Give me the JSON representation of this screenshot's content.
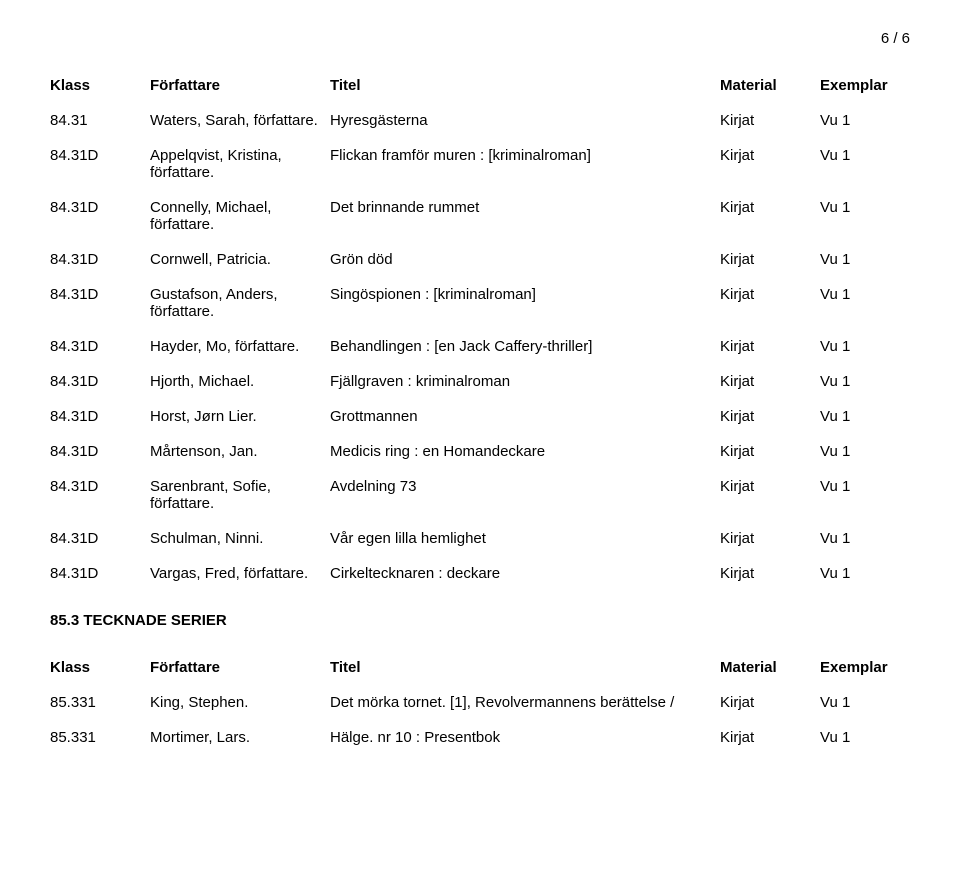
{
  "page_number": "6 / 6",
  "headers": {
    "klass": "Klass",
    "author": "Författare",
    "title": "Titel",
    "material": "Material",
    "exemplar": "Exemplar"
  },
  "rows1": [
    {
      "klass": "84.31",
      "author": "Waters, Sarah, författare.",
      "title": "Hyresgästerna",
      "material": "Kirjat",
      "ex": "Vu 1"
    },
    {
      "klass": "84.31D",
      "author": "Appelqvist, Kristina, författare.",
      "title": "Flickan framför muren : [kriminalroman]",
      "material": "Kirjat",
      "ex": "Vu 1"
    },
    {
      "klass": "84.31D",
      "author": "Connelly, Michael, författare.",
      "title": "Det brinnande rummet",
      "material": "Kirjat",
      "ex": "Vu 1"
    },
    {
      "klass": "84.31D",
      "author": "Cornwell, Patricia.",
      "title": "Grön död",
      "material": "Kirjat",
      "ex": "Vu 1"
    },
    {
      "klass": "84.31D",
      "author": "Gustafson, Anders, författare.",
      "title": "Singöspionen : [kriminalroman]",
      "material": "Kirjat",
      "ex": "Vu 1"
    },
    {
      "klass": "84.31D",
      "author": "Hayder, Mo, författare.",
      "title": "Behandlingen : [en Jack Caffery-thriller]",
      "material": "Kirjat",
      "ex": "Vu 1"
    },
    {
      "klass": "84.31D",
      "author": "Hjorth, Michael.",
      "title": "Fjällgraven : kriminalroman",
      "material": "Kirjat",
      "ex": "Vu 1"
    },
    {
      "klass": "84.31D",
      "author": "Horst, Jørn Lier.",
      "title": "Grottmannen",
      "material": "Kirjat",
      "ex": "Vu 1"
    },
    {
      "klass": "84.31D",
      "author": "Mårtenson, Jan.",
      "title": "Medicis ring : en Homandeckare",
      "material": "Kirjat",
      "ex": "Vu 1"
    },
    {
      "klass": "84.31D",
      "author": "Sarenbrant, Sofie, författare.",
      "title": "Avdelning 73",
      "material": "Kirjat",
      "ex": "Vu 1"
    },
    {
      "klass": "84.31D",
      "author": "Schulman, Ninni.",
      "title": "Vår egen lilla hemlighet",
      "material": "Kirjat",
      "ex": "Vu 1"
    },
    {
      "klass": "84.31D",
      "author": "Vargas, Fred, författare.",
      "title": "Cirkeltecknaren : deckare",
      "material": "Kirjat",
      "ex": "Vu 1"
    }
  ],
  "section2_heading": "85.3 TECKNADE SERIER",
  "rows2": [
    {
      "klass": "85.331",
      "author": "King, Stephen.",
      "title": "Det mörka tornet. [1], Revolvermannens berättelse /",
      "material": "Kirjat",
      "ex": "Vu 1"
    },
    {
      "klass": "85.331",
      "author": "Mortimer, Lars.",
      "title": "Hälge. nr 10 : Presentbok",
      "material": "Kirjat",
      "ex": "Vu 1"
    }
  ]
}
